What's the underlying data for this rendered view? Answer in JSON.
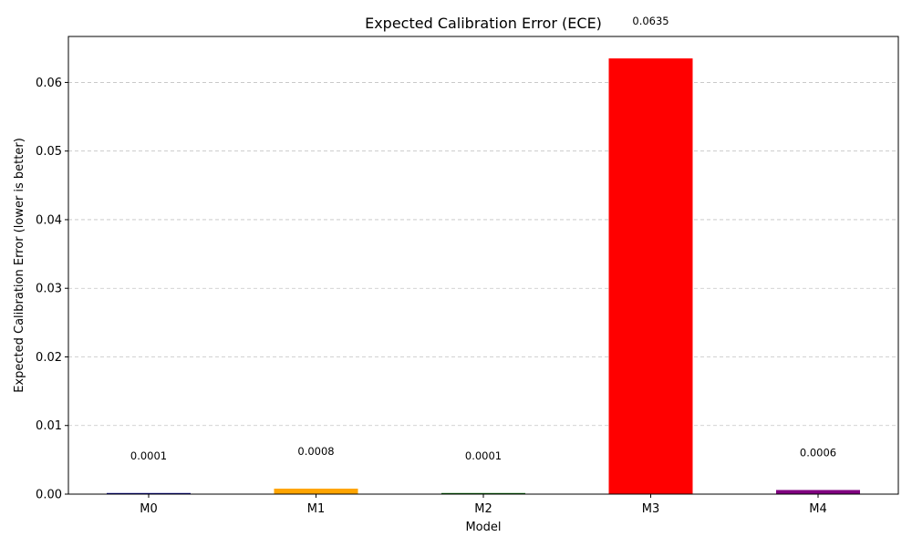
{
  "chart_data": {
    "type": "bar",
    "title": "Expected Calibration Error (ECE)",
    "xlabel": "Model",
    "ylabel": "Expected Calibration Error (lower is better)",
    "categories": [
      "M0",
      "M1",
      "M2",
      "M3",
      "M4"
    ],
    "values": [
      0.0001,
      0.0008,
      0.0001,
      0.0635,
      0.0006
    ],
    "data_labels": [
      "0.0001",
      "0.0008",
      "0.0001",
      "0.0635",
      "0.0006"
    ],
    "colors": [
      "#00008b",
      "#ffa500",
      "#006400",
      "#ff0000",
      "#800080"
    ],
    "ylim": [
      0,
      0.0667
    ],
    "yticks": [
      0,
      0.01,
      0.02,
      0.03,
      0.04,
      0.05,
      0.06
    ],
    "ytick_labels": [
      "0.00",
      "0.01",
      "0.02",
      "0.03",
      "0.04",
      "0.05",
      "0.06"
    ],
    "grid": "y",
    "legend": "none"
  }
}
